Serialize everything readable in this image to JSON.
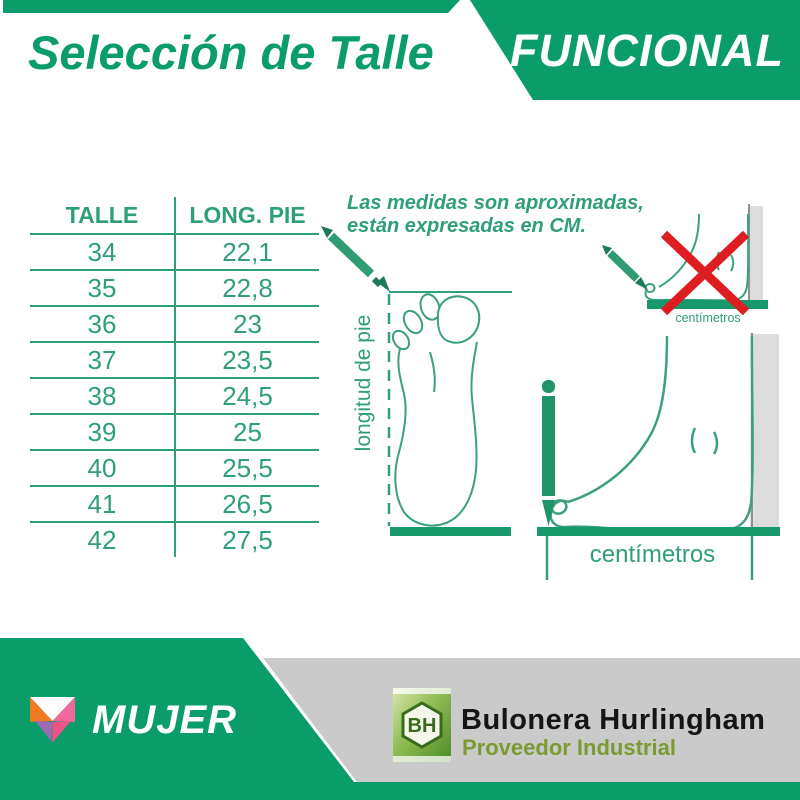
{
  "header": {
    "title": "Selección de Talle",
    "brand": "FUNCIONAL"
  },
  "size_table": {
    "columns": [
      "TALLE",
      "LONG. PIE"
    ],
    "rows": [
      [
        "34",
        "22,1"
      ],
      [
        "35",
        "22,8"
      ],
      [
        "36",
        "23"
      ],
      [
        "37",
        "23,5"
      ],
      [
        "38",
        "24,5"
      ],
      [
        "39",
        "25"
      ],
      [
        "40",
        "25,5"
      ],
      [
        "41",
        "26,5"
      ],
      [
        "42",
        "27,5"
      ]
    ]
  },
  "note": {
    "line1": "Las medidas son aproximadas,",
    "line2": "están expresadas en CM."
  },
  "diagram": {
    "foot_length_label": "longitud de pie",
    "cm_label_small": "centímetros",
    "cm_label_large": "centímetros"
  },
  "footer": {
    "category": "MUJER",
    "seller_badge": "BH",
    "seller_name": "Bulonera Hurlingham",
    "seller_tagline": "Proveedor Industrial"
  },
  "colors": {
    "green": "#0A9C69",
    "tgreen": "#2F9E7B",
    "linegreen": "#3BA07E",
    "bargreen": "#17996B",
    "red": "#DE1D20",
    "wallgray": "#DCDCDC",
    "footergray": "#CACACA",
    "orange": "#F0781E",
    "pink": "#EE5388",
    "lightpink": "#F2679C",
    "purple": "#9B6BB3",
    "olive": "#7C9A33"
  }
}
